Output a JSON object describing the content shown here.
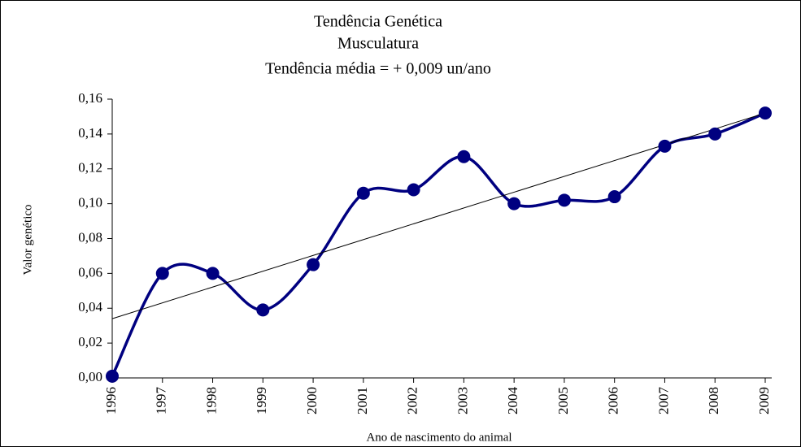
{
  "chart_data": {
    "type": "line",
    "title": [
      "Tendência Genética",
      "Musculatura",
      "Tendência média = + 0,009 un/ano"
    ],
    "xlabel": "Ano de nascimento do animal",
    "ylabel": "Valor genético",
    "categories": [
      "1996",
      "1997",
      "1998",
      "1999",
      "2000",
      "2001",
      "2002",
      "2003",
      "2004",
      "2005",
      "2006",
      "2007",
      "2008",
      "2009"
    ],
    "series": [
      {
        "color": "#000080",
        "values": [
          0.001,
          0.06,
          0.06,
          0.039,
          0.065,
          0.106,
          0.108,
          0.127,
          0.1,
          0.102,
          0.104,
          0.133,
          0.14,
          0.152
        ]
      }
    ],
    "trendline": [
      0.034,
      0.152
    ],
    "ylim": [
      0,
      0.16
    ],
    "yticks": [
      {
        "value": 0,
        "label": "0,00"
      },
      {
        "value": 0.02,
        "label": "0,02"
      },
      {
        "value": 0.04,
        "label": "0,04"
      },
      {
        "value": 0.06,
        "label": "0,06"
      },
      {
        "value": 0.08,
        "label": "0,08"
      },
      {
        "value": 0.1,
        "label": "0,10"
      },
      {
        "value": 0.12,
        "label": "0,12"
      },
      {
        "value": 0.14,
        "label": "0,14"
      },
      {
        "value": 0.16,
        "label": "0,16"
      }
    ],
    "grid": false
  }
}
